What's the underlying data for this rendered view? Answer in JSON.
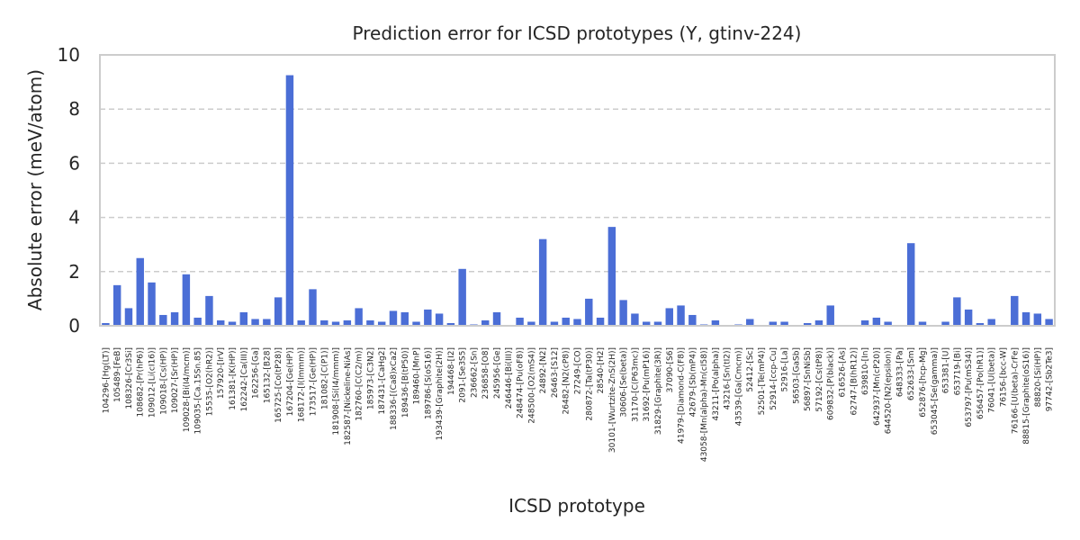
{
  "chart_data": {
    "type": "bar",
    "title": "Prediction error for ICSD prototypes (Y, gtinv-224)",
    "xlabel": "ICSD prototype",
    "ylabel": "Absolute error (meV/atom)",
    "ylim": [
      0,
      10
    ],
    "yticks": [
      0,
      2,
      4,
      6,
      8,
      10
    ],
    "grid": "y-dashed",
    "bar_color": "#4b6ed6",
    "categories": [
      "104296-[Hg(LT)]",
      "105489-[FeB]",
      "108326-[Cr3Si]",
      "108682-[Pr(hP6)]",
      "109012-[Li(cI16)]",
      "109018-[Cs(HP)]",
      "109027-[Sr(HP)]",
      "109028-[Bi(I4/mcm)]",
      "109035-[Ca.15Sn.85]",
      "15535-[O2(hR2)]",
      "157920-[IrV]",
      "161381-[K(HP)]",
      "162242-[Ca(III)]",
      "162256-[Ga]",
      "165132-[B28]",
      "165725-[Co(tP28)]",
      "167204-[Ge(HP)]",
      "168172-[I(Immm)]",
      "173517-[Ge(HP)]",
      "181082-[C(P1)]",
      "181908-[Si(I4/mmm)]",
      "182587-[Nickeline-NiAs]",
      "182760-[C(C2/m)]",
      "185973-[C3N2]",
      "187431-[CaHg2]",
      "188336-[(Ca8)xCa2]",
      "189436-[B(tP50)]",
      "189460-[MnP]",
      "189786-[S(oS16)]",
      "193439-[Graphite(2H)]",
      "194468-[I2]",
      "2091-[Se3S5]",
      "236662-[Sn]",
      "236858-[O8]",
      "245956-[Ge]",
      "246446-[Bi(III)]",
      "248474-[Pu(oF8)]",
      "248500-[O2(mS4)]",
      "24892-[N2]",
      "26463-[S12]",
      "26482-[N2(cP8)]",
      "27249-[CO]",
      "280872-[Ta(tP30)]",
      "28540-[H2]",
      "30101-[Wurtzite-ZnS(2H)]",
      "30606-[Se(beta)]",
      "31170-[C(P63mc)]",
      "31692-[Pu(mP16)]",
      "31829-[Graphite(3R)]",
      "37090-[S6]",
      "41979-[Diamond-C(F8)]",
      "42679-[Sb(mP4)]",
      "43058-[Mn(alpha)-Mn(cI58)]",
      "43211-[Po(alpha)]",
      "43216-[Sn(tI2)]",
      "43539-[Ga(Cmcm)]",
      "52412-[Sc]",
      "52501-[Te(mP4)]",
      "52914-[ccp-Cu]",
      "52916-[La]",
      "56503-[GaSb]",
      "56897-[SnNiSb]",
      "57192-[Cs(tP8)]",
      "609832-[P(black)]",
      "616526-[As]",
      "62747-[B(hR12)]",
      "639810-[In]",
      "642937-[Mn(cP20)]",
      "644520-[N2(epsilon)]",
      "648333-[Pa]",
      "652633-[Sm]",
      "652876-[hcp-Mg]",
      "653045-[Se(gamma)]",
      "653381-[U]",
      "653719-[Bi]",
      "653797-[Pu(mS34)]",
      "656457-[Po(hR1)]",
      "76041-[U(beta)]",
      "76156-[bcc-W]",
      "76166-[U(beta)-CrFe]",
      "88815-[Graphite(oS16)]",
      "88820-[Si(HP)]",
      "97742-[Sb2Te3]"
    ],
    "values": [
      0.1,
      1.5,
      0.65,
      2.5,
      1.6,
      0.4,
      0.5,
      1.9,
      0.3,
      1.1,
      0.2,
      0.15,
      0.5,
      0.25,
      0.25,
      1.05,
      9.25,
      0.2,
      1.35,
      0.2,
      0.15,
      0.2,
      0.65,
      0.2,
      0.15,
      0.55,
      0.5,
      0.15,
      0.6,
      0.45,
      0.1,
      2.1,
      0.05,
      0.2,
      0.5,
      0.02,
      0.3,
      0.15,
      3.2,
      0.15,
      0.3,
      0.25,
      1.0,
      0.3,
      3.65,
      0.95,
      0.45,
      0.15,
      0.15,
      0.65,
      0.75,
      0.4,
      0.05,
      0.2,
      0.02,
      0.05,
      0.25,
      0.02,
      0.15,
      0.15,
      0.02,
      0.1,
      0.2,
      0.75,
      0.02,
      0.02,
      0.2,
      0.3,
      0.15,
      0.02,
      3.05,
      0.15,
      0.02,
      0.15,
      1.05,
      0.6,
      0.1,
      0.25,
      0.02,
      1.1,
      0.5,
      0.45,
      0.25
    ]
  }
}
